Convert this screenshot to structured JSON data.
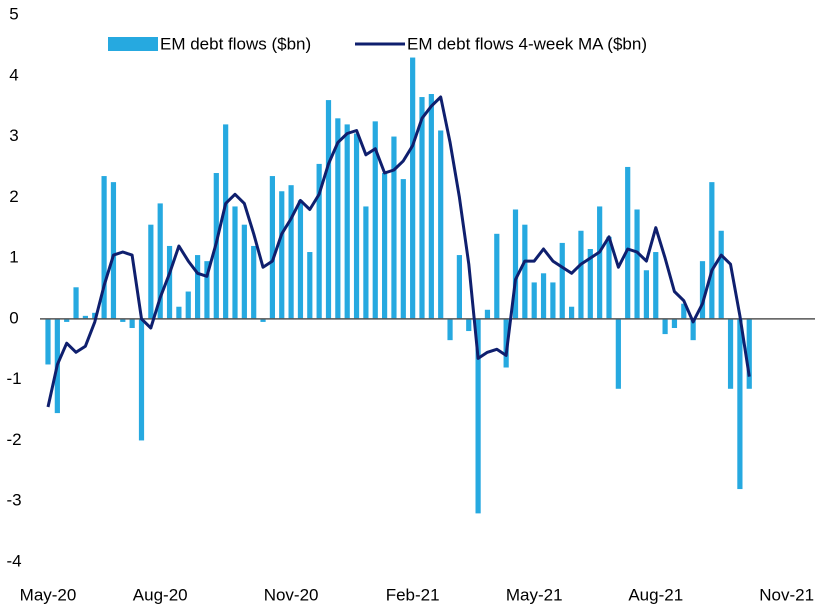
{
  "chart_data": {
    "type": "bar-line",
    "categories": [
      "May-20",
      null,
      null,
      null,
      null,
      null,
      null,
      null,
      null,
      null,
      null,
      null,
      "Aug-20",
      null,
      null,
      null,
      null,
      null,
      null,
      null,
      null,
      null,
      null,
      null,
      null,
      null,
      "Nov-20",
      null,
      null,
      null,
      null,
      null,
      null,
      null,
      null,
      null,
      null,
      null,
      null,
      "Feb-21",
      null,
      null,
      null,
      null,
      null,
      null,
      null,
      null,
      null,
      null,
      null,
      null,
      "May-21",
      null,
      null,
      null,
      null,
      null,
      null,
      null,
      null,
      null,
      null,
      null,
      null,
      "Aug-21",
      null,
      null,
      null,
      null,
      null,
      null,
      null,
      null,
      null,
      null,
      null,
      null,
      null,
      "Nov-21"
    ],
    "series": [
      {
        "name": "EM debt flows ($bn)",
        "color": "#26a9e0",
        "kind": "bar",
        "values": [
          -0.75,
          -1.55,
          -0.05,
          0.52,
          0.05,
          0.1,
          2.35,
          2.25,
          -0.05,
          -0.15,
          -2.0,
          1.55,
          1.9,
          1.2,
          0.2,
          0.45,
          1.05,
          0.95,
          2.4,
          3.2,
          1.85,
          1.55,
          1.2,
          -0.05,
          2.35,
          2.1,
          2.2,
          1.95,
          1.1,
          2.55,
          3.6,
          3.3,
          3.2,
          3.05,
          1.85,
          3.25,
          2.4,
          3.0,
          2.3,
          4.3,
          3.65,
          3.7,
          3.1,
          -0.35,
          1.05,
          -0.2,
          -3.2,
          0.15,
          1.4,
          -0.8,
          1.8,
          1.55,
          0.6,
          0.75,
          0.6,
          1.25,
          0.2,
          1.45,
          1.15,
          1.85,
          1.35,
          -1.15,
          2.5,
          1.8,
          0.8,
          1.1,
          -0.25,
          -0.15,
          0.25,
          -0.35,
          0.95,
          2.25,
          1.45,
          -1.15,
          -2.8,
          -1.15,
          null,
          null,
          null,
          null
        ]
      },
      {
        "name": "EM debt flows 4-week MA ($bn)",
        "color": "#0f1f6e",
        "kind": "line",
        "values": [
          -1.45,
          -0.75,
          -0.4,
          -0.55,
          -0.45,
          -0.05,
          0.55,
          1.05,
          1.1,
          1.05,
          0.0,
          -0.15,
          0.35,
          0.75,
          1.2,
          0.95,
          0.75,
          0.7,
          1.25,
          1.9,
          2.05,
          1.9,
          1.4,
          0.85,
          0.95,
          1.4,
          1.65,
          1.95,
          1.8,
          2.05,
          2.55,
          2.9,
          3.05,
          3.1,
          2.7,
          2.8,
          2.4,
          2.45,
          2.6,
          2.85,
          3.3,
          3.5,
          3.65,
          2.9,
          2.0,
          0.9,
          -0.65,
          -0.55,
          -0.5,
          -0.6,
          0.65,
          0.95,
          0.95,
          1.15,
          0.95,
          0.85,
          0.75,
          0.9,
          1.0,
          1.1,
          1.35,
          0.85,
          1.15,
          1.1,
          0.95,
          1.5,
          1.0,
          0.45,
          0.3,
          -0.05,
          0.25,
          0.8,
          1.05,
          0.9,
          0.05,
          -0.95,
          null,
          null,
          null,
          null
        ]
      }
    ],
    "ylim": [
      -4,
      5
    ],
    "yticks": [
      -4,
      -3,
      -2,
      -1,
      0,
      1,
      2,
      3,
      4,
      5
    ],
    "grid": false,
    "legend": "top"
  }
}
